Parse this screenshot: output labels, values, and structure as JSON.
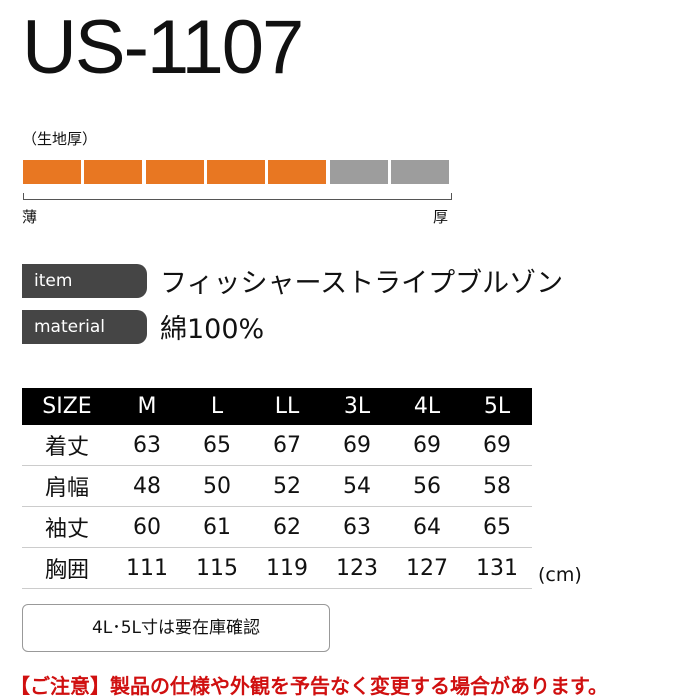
{
  "title": "US-1107",
  "thickness": {
    "label": "（生地厚）",
    "level": 5,
    "total": 7,
    "filled_color": "#e87722",
    "empty_color": "#9d9d9d",
    "min_label": "薄",
    "max_label": "厚"
  },
  "item": {
    "label": "item",
    "value": "フィッシャーストライプブルゾン"
  },
  "material": {
    "label": "material",
    "value": "綿100%"
  },
  "table": {
    "header": [
      "SIZE",
      "M",
      "L",
      "LL",
      "3L",
      "4L",
      "5L"
    ],
    "rows": [
      [
        "着丈",
        "63",
        "65",
        "67",
        "69",
        "69",
        "69"
      ],
      [
        "肩幅",
        "48",
        "50",
        "52",
        "54",
        "56",
        "58"
      ],
      [
        "袖丈",
        "60",
        "61",
        "62",
        "63",
        "64",
        "65"
      ],
      [
        "胸囲",
        "111",
        "115",
        "119",
        "123",
        "127",
        "131"
      ]
    ],
    "unit": "(cm)"
  },
  "note": "4L･5L寸は要在庫確認",
  "caution": "【ご注意】製品の仕様や外観を予告なく変更する場合があります。"
}
